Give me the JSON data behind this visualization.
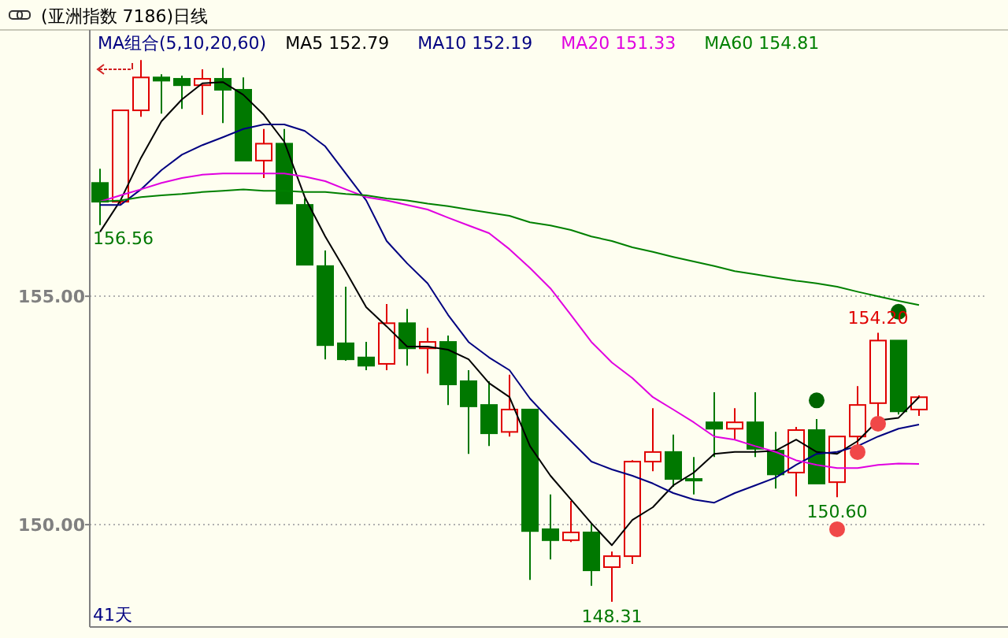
{
  "chart_data": {
    "type": "candlestick",
    "title": "(亚洲指数 7186)日线",
    "categories": [
      null,
      null,
      null,
      null,
      null,
      null,
      null,
      null,
      null,
      null,
      null,
      null,
      null,
      null,
      null,
      null,
      null,
      null,
      null,
      null,
      null,
      null,
      null,
      null,
      null,
      null,
      null,
      null,
      null,
      null,
      null,
      null,
      null,
      null,
      null,
      null,
      null,
      null,
      null,
      null,
      null
    ],
    "ohlc": [
      [
        157.48,
        157.79,
        156.56,
        157.07
      ],
      [
        157.07,
        159.07,
        157.0,
        159.07
      ],
      [
        159.07,
        160.17,
        158.93,
        159.79
      ],
      [
        159.79,
        159.86,
        159.0,
        159.72
      ],
      [
        159.76,
        159.83,
        159.1,
        159.62
      ],
      [
        159.62,
        159.97,
        158.97,
        159.76
      ],
      [
        159.76,
        160.0,
        158.79,
        159.52
      ],
      [
        159.52,
        159.79,
        157.97,
        157.97
      ],
      [
        157.97,
        158.66,
        157.59,
        158.34
      ],
      [
        158.34,
        158.66,
        157.03,
        157.03
      ],
      [
        157.0,
        157.14,
        155.69,
        155.69
      ],
      [
        155.66,
        156.0,
        153.62,
        153.93
      ],
      [
        153.97,
        155.21,
        153.59,
        153.62
      ],
      [
        153.66,
        154.0,
        153.38,
        153.48
      ],
      [
        153.52,
        154.83,
        153.38,
        154.41
      ],
      [
        154.41,
        154.72,
        153.48,
        153.86
      ],
      [
        153.86,
        154.31,
        153.31,
        154.0
      ],
      [
        154.0,
        154.14,
        152.62,
        153.07
      ],
      [
        153.14,
        153.38,
        151.55,
        152.59
      ],
      [
        152.62,
        153.14,
        151.72,
        152.0
      ],
      [
        152.03,
        153.28,
        151.93,
        152.52
      ],
      [
        152.52,
        152.52,
        148.79,
        149.86
      ],
      [
        149.9,
        150.66,
        149.24,
        149.66
      ],
      [
        149.66,
        150.52,
        149.62,
        149.83
      ],
      [
        149.83,
        150.03,
        148.66,
        149.0
      ],
      [
        149.07,
        149.41,
        148.31,
        149.31
      ],
      [
        149.31,
        151.41,
        149.14,
        151.38
      ],
      [
        151.38,
        152.55,
        151.17,
        151.59
      ],
      [
        151.59,
        151.97,
        150.83,
        151.0
      ],
      [
        151.0,
        151.48,
        150.66,
        150.97
      ],
      [
        152.24,
        152.9,
        151.48,
        152.1
      ],
      [
        152.1,
        152.55,
        151.86,
        152.24
      ],
      [
        152.24,
        152.9,
        151.48,
        151.66
      ],
      [
        151.62,
        152.03,
        150.79,
        151.1
      ],
      [
        151.14,
        152.14,
        150.62,
        152.07
      ],
      [
        152.07,
        152.31,
        150.9,
        150.9
      ],
      [
        150.93,
        151.93,
        150.6,
        151.93
      ],
      [
        151.93,
        153.03,
        151.62,
        152.62
      ],
      [
        152.66,
        154.2,
        152.34,
        154.03
      ],
      [
        154.03,
        154.03,
        152.41,
        152.48
      ],
      [
        152.52,
        152.83,
        152.38,
        152.79
      ]
    ],
    "colors": [
      "#007800",
      "#e00000",
      "#e00000",
      "#007800",
      "#007800",
      "#e00000",
      "#007800",
      "#007800",
      "#e00000",
      "#007800",
      "#007800",
      "#007800",
      "#007800",
      "#007800",
      "#e00000",
      "#007800",
      "#e00000",
      "#007800",
      "#007800",
      "#007800",
      "#e00000",
      "#007800",
      "#007800",
      "#e00000",
      "#007800",
      "#e00000",
      "#e00000",
      "#e00000",
      "#007800",
      "#007800",
      "#007800",
      "#e00000",
      "#007800",
      "#007800",
      "#e00000",
      "#007800",
      "#e00000",
      "#e00000",
      "#e00000",
      "#007800",
      "#e00000"
    ],
    "series": [
      {
        "name": "MA5 152.79",
        "type": "line",
        "color": "#000000",
        "values": [
          156.41,
          157.1,
          158.03,
          158.83,
          159.31,
          159.66,
          159.69,
          159.41,
          158.97,
          158.38,
          157.17,
          156.31,
          155.55,
          154.76,
          154.34,
          153.9,
          153.9,
          153.83,
          153.62,
          153.1,
          152.79,
          151.72,
          151.07,
          150.55,
          150.03,
          149.55,
          150.1,
          150.38,
          150.86,
          151.14,
          151.55,
          151.59,
          151.59,
          151.62,
          151.86,
          151.59,
          151.55,
          151.83,
          152.28,
          152.34,
          152.79
        ]
      },
      {
        "name": "MA10 152.19",
        "type": "line",
        "color": "#000080",
        "values": [
          157.0,
          157.0,
          157.34,
          157.76,
          158.1,
          158.31,
          158.48,
          158.66,
          158.76,
          158.76,
          158.62,
          158.28,
          157.69,
          157.1,
          156.21,
          155.72,
          155.28,
          154.59,
          154.0,
          153.66,
          153.38,
          152.76,
          152.28,
          151.83,
          151.38,
          151.21,
          151.07,
          150.9,
          150.69,
          150.55,
          150.48,
          150.69,
          150.86,
          151.03,
          151.31,
          151.55,
          151.59,
          151.72,
          151.93,
          152.1,
          152.19
        ]
      },
      {
        "name": "MA20 151.33",
        "type": "line",
        "color": "#e000e0",
        "values": [
          157.07,
          157.21,
          157.34,
          157.48,
          157.59,
          157.66,
          157.69,
          157.69,
          157.69,
          157.69,
          157.62,
          157.52,
          157.34,
          157.17,
          157.1,
          157.0,
          156.9,
          156.72,
          156.55,
          156.38,
          156.03,
          155.62,
          155.17,
          154.59,
          154.0,
          153.55,
          153.21,
          152.79,
          152.52,
          152.24,
          151.93,
          151.86,
          151.72,
          151.59,
          151.41,
          151.31,
          151.24,
          151.24,
          151.31,
          151.34,
          151.33
        ]
      },
      {
        "name": "MA60 154.81",
        "type": "line",
        "color": "#008000",
        "values": [
          157.07,
          157.1,
          157.17,
          157.21,
          157.24,
          157.28,
          157.31,
          157.34,
          157.31,
          157.31,
          157.28,
          157.28,
          157.24,
          157.21,
          157.14,
          157.1,
          157.03,
          156.97,
          156.9,
          156.83,
          156.76,
          156.62,
          156.55,
          156.45,
          156.31,
          156.21,
          156.07,
          155.97,
          155.86,
          155.76,
          155.66,
          155.55,
          155.48,
          155.41,
          155.34,
          155.28,
          155.21,
          155.1,
          155.0,
          154.9,
          154.81
        ]
      },
      {
        "type": "scatter",
        "marker": "circle",
        "color": "#f04848",
        "values": [
          null,
          null,
          null,
          null,
          null,
          null,
          null,
          null,
          null,
          null,
          null,
          null,
          null,
          null,
          null,
          null,
          null,
          null,
          null,
          null,
          null,
          null,
          null,
          null,
          null,
          null,
          null,
          null,
          null,
          null,
          null,
          null,
          null,
          null,
          null,
          null,
          149.9,
          151.59,
          152.21,
          null,
          null
        ]
      },
      {
        "type": "scatter",
        "marker": "circle",
        "color": "#006400",
        "values": [
          null,
          null,
          null,
          null,
          null,
          null,
          null,
          null,
          null,
          null,
          null,
          null,
          null,
          null,
          null,
          null,
          null,
          null,
          null,
          null,
          null,
          null,
          null,
          null,
          null,
          null,
          null,
          null,
          null,
          null,
          null,
          null,
          null,
          null,
          null,
          152.72,
          null,
          null,
          null,
          154.66,
          null
        ]
      }
    ],
    "ylim": [
      147.76,
      160.83
    ],
    "yticks": [
      {
        "value": 150,
        "label": "150.00"
      },
      {
        "value": 155,
        "label": "155.00"
      }
    ],
    "grid": "y",
    "legend": "top",
    "annotations": [
      "MA组合(5,10,20,60)",
      "41天",
      "156.56",
      {
        "text": "148.31",
        "y": 148.31
      },
      {
        "text": "150.60",
        "y": 150.6
      },
      {
        "text": "154.20",
        "y": 154.2
      }
    ]
  }
}
